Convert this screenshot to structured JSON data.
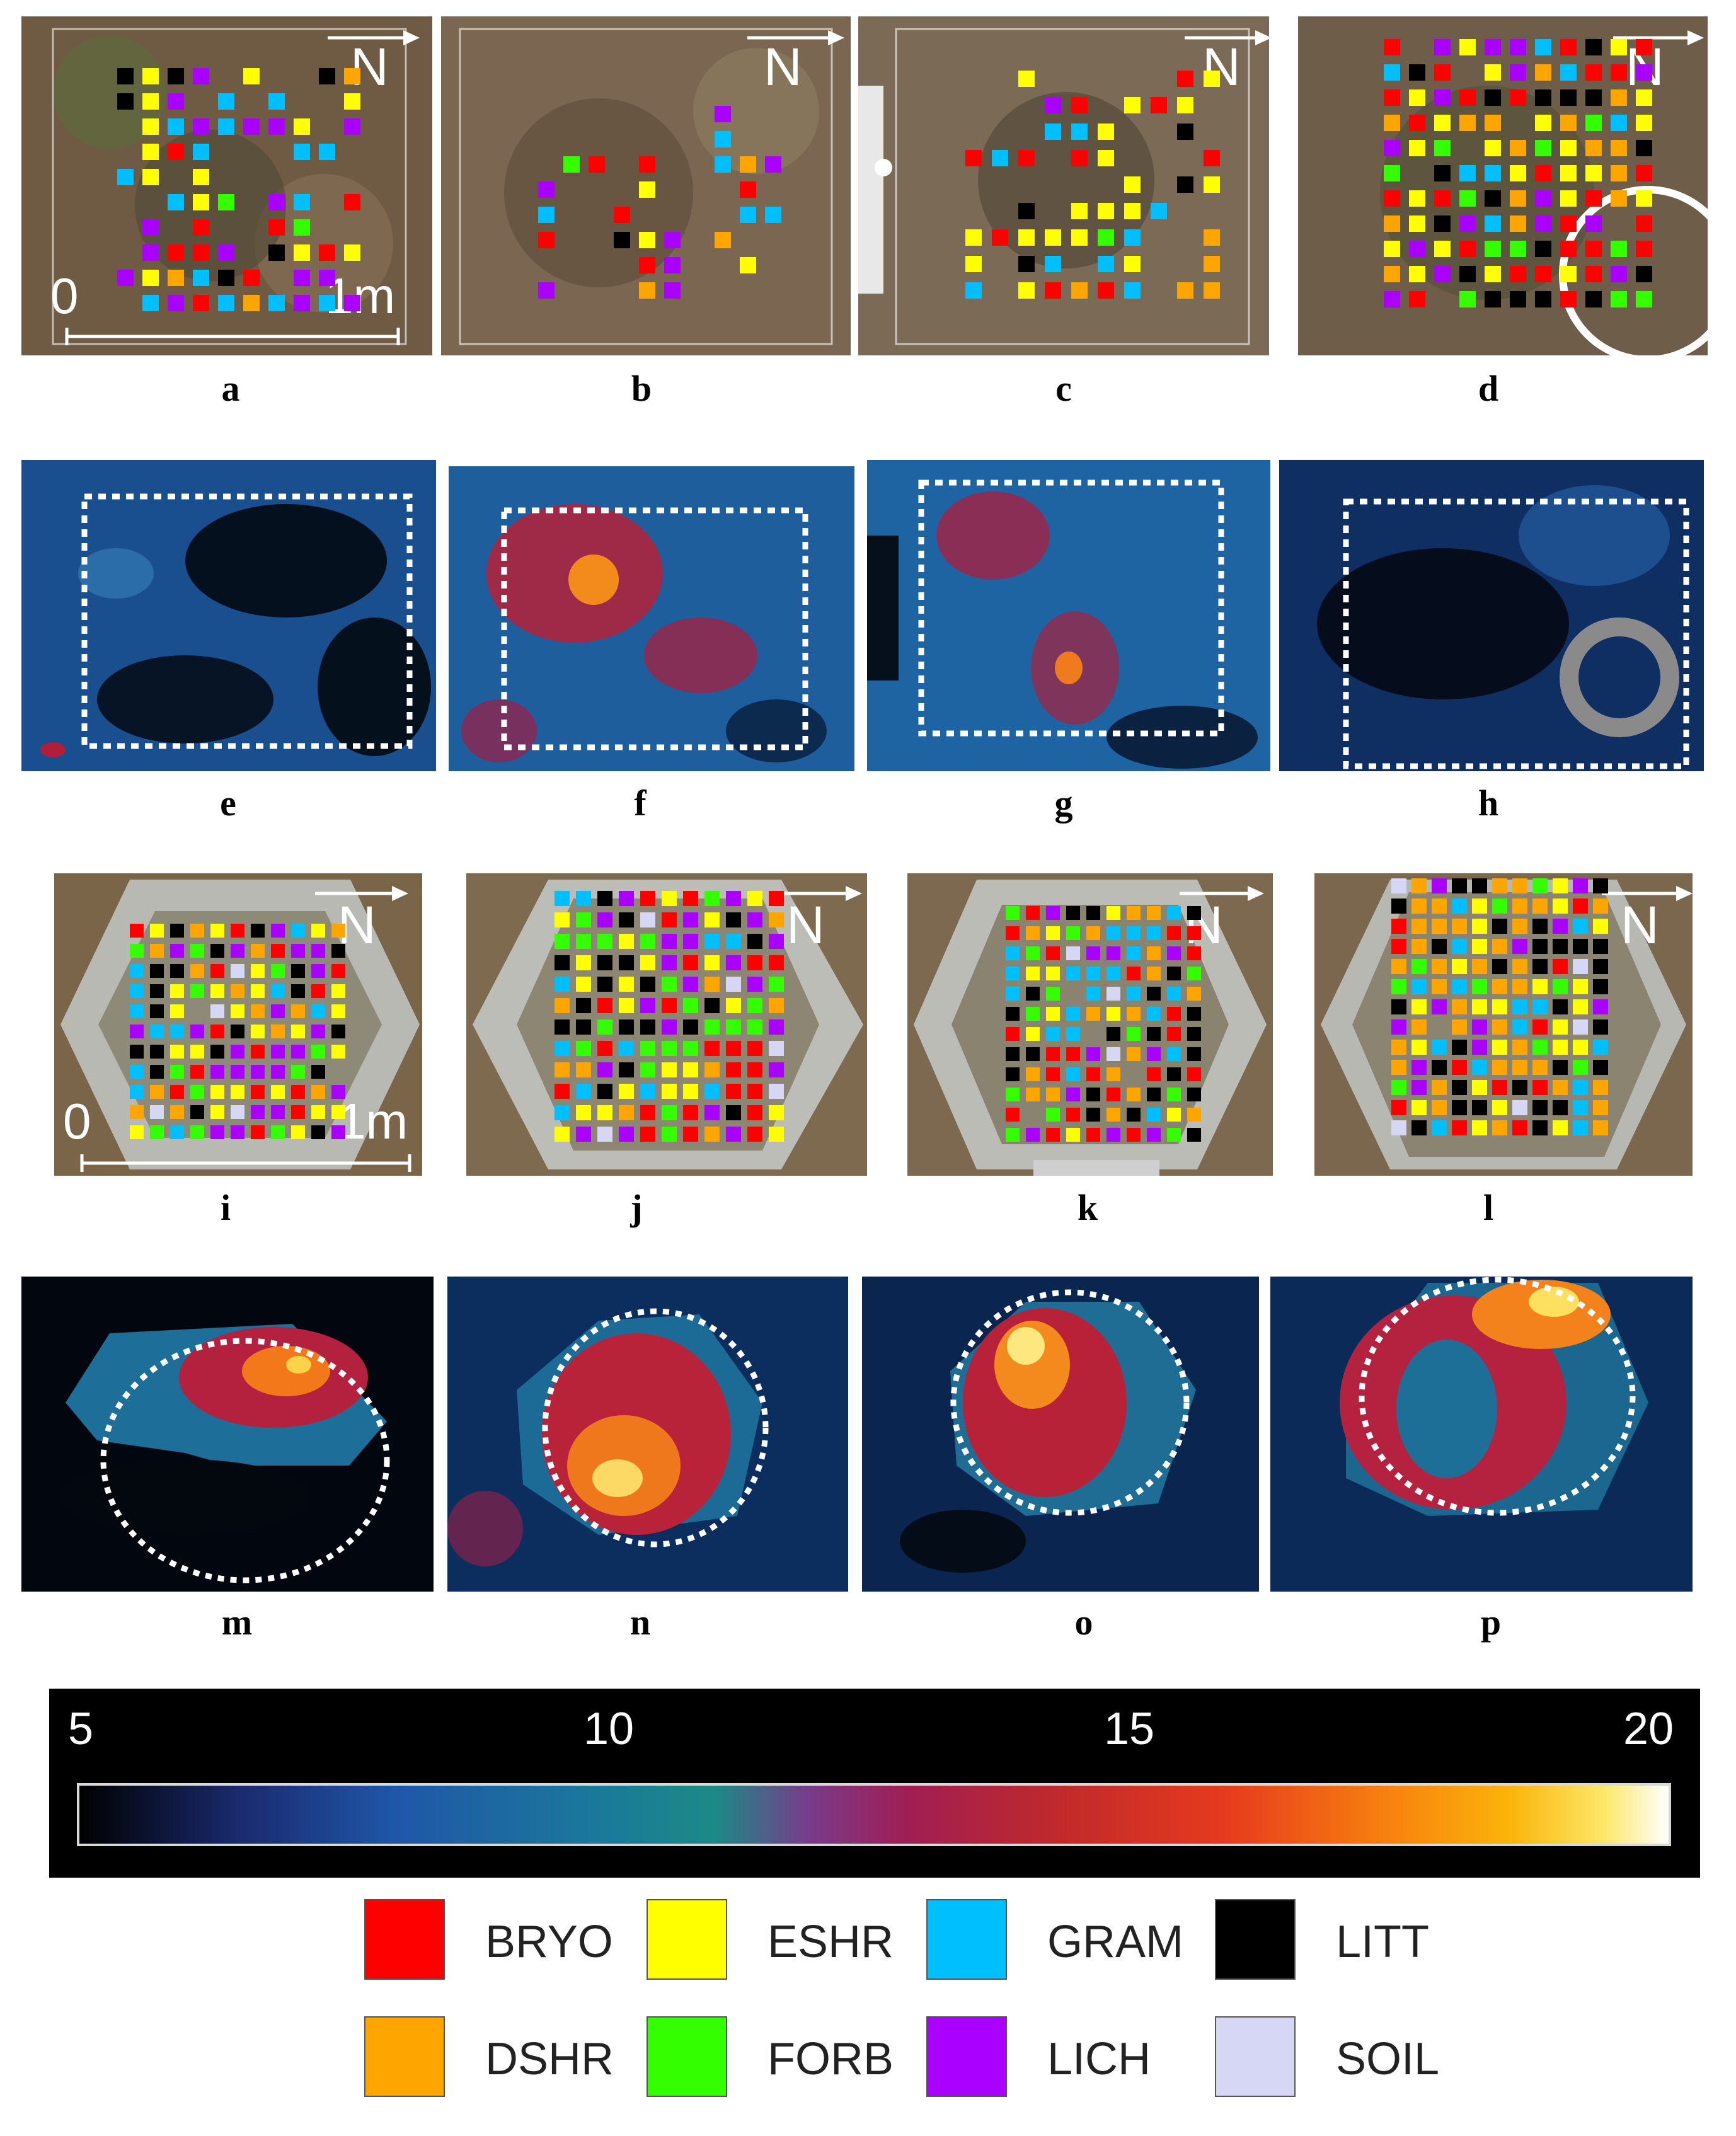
{
  "panel_labels": [
    "a",
    "b",
    "c",
    "d",
    "e",
    "f",
    "g",
    "h",
    "i",
    "j",
    "k",
    "l",
    "m",
    "n",
    "o",
    "p"
  ],
  "north_label": "N",
  "scale_bar": {
    "start": "0",
    "end": "1m"
  },
  "colorbar": {
    "ticks": [
      "5",
      "10",
      "15",
      "20"
    ],
    "min": 5,
    "max": 20,
    "colors": [
      "#000000",
      "#1f57a8",
      "#1c8a86",
      "#a01e54",
      "#e63a1e",
      "#fbb40a",
      "#ffffff"
    ]
  },
  "legend": [
    {
      "label": "BRYO",
      "color": "#ff0000"
    },
    {
      "label": "ESHR",
      "color": "#ffff00"
    },
    {
      "label": "GRAM",
      "color": "#00bfff"
    },
    {
      "label": "LITT",
      "color": "#000000"
    },
    {
      "label": "DSHR",
      "color": "#ffa500"
    },
    {
      "label": "FORB",
      "color": "#33ff00"
    },
    {
      "label": "LICH",
      "color": "#aa00ff"
    },
    {
      "label": "SOIL",
      "color": "#d6d6f5"
    }
  ],
  "icons": {
    "north_arrow": "north-arrow-icon",
    "scale_bar": "scale-bar-icon",
    "collar_ring": "ring-icon"
  }
}
